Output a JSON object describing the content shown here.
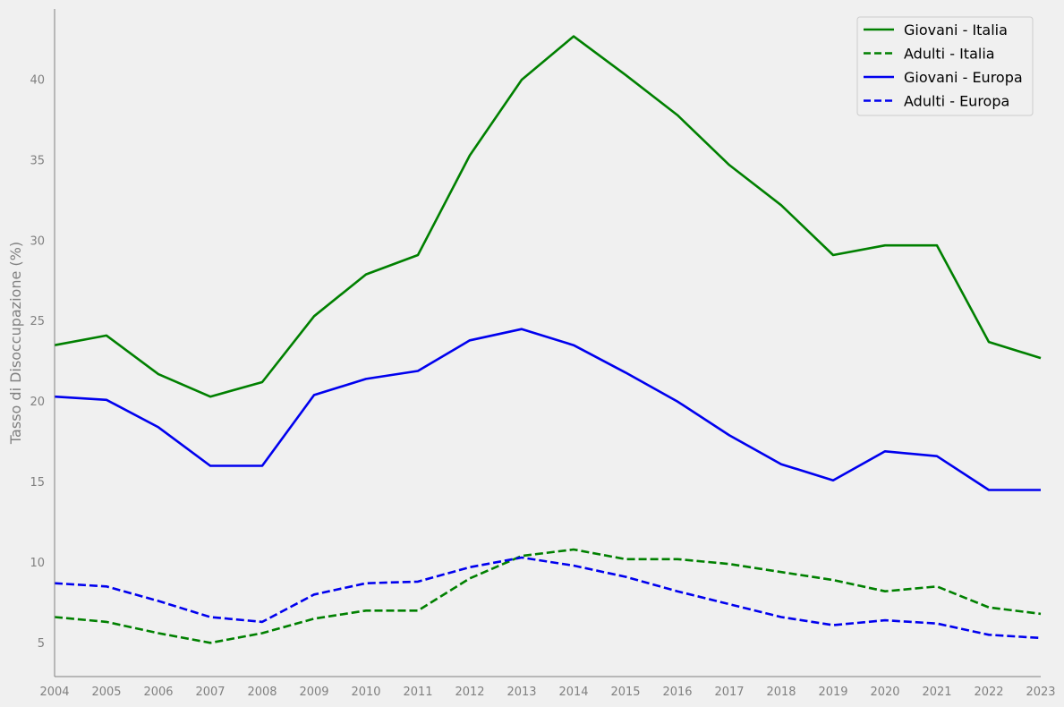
{
  "chart_data": {
    "type": "line",
    "title": "",
    "xlabel": "",
    "ylabel": "Tasso di Disoccupazione (%)",
    "x": [
      2004,
      2005,
      2006,
      2007,
      2008,
      2009,
      2010,
      2011,
      2012,
      2013,
      2014,
      2015,
      2016,
      2017,
      2018,
      2019,
      2020,
      2021,
      2022,
      2023
    ],
    "xlim": [
      2004,
      2023
    ],
    "ylim": [
      2.9,
      44.4
    ],
    "yticks": [
      5,
      10,
      15,
      20,
      25,
      30,
      35,
      40
    ],
    "grid": false,
    "legend_position": "top-right",
    "series": [
      {
        "name": "Giovani - Italia",
        "color": "#008000",
        "style": "solid",
        "values": [
          23.5,
          24.1,
          21.7,
          20.3,
          21.2,
          25.3,
          27.9,
          29.1,
          35.3,
          40.0,
          42.7,
          40.3,
          37.8,
          34.7,
          32.2,
          29.1,
          29.7,
          29.7,
          23.7,
          22.7
        ]
      },
      {
        "name": "Adulti - Italia",
        "color": "#008000",
        "style": "dashed",
        "values": [
          6.6,
          6.3,
          5.6,
          5.0,
          5.6,
          6.5,
          7.0,
          7.0,
          9.0,
          10.4,
          10.8,
          10.2,
          10.2,
          9.9,
          9.4,
          8.9,
          8.2,
          8.5,
          7.2,
          6.8
        ]
      },
      {
        "name": "Giovani - Europa",
        "color": "#0000ee",
        "style": "solid",
        "values": [
          20.3,
          20.1,
          18.4,
          16.0,
          16.0,
          20.4,
          21.4,
          21.9,
          23.8,
          24.5,
          23.5,
          21.8,
          20.0,
          17.9,
          16.1,
          15.1,
          16.9,
          16.6,
          14.5,
          14.5
        ]
      },
      {
        "name": "Adulti - Europa",
        "color": "#0000ee",
        "style": "dashed",
        "values": [
          8.7,
          8.5,
          7.6,
          6.6,
          6.3,
          8.0,
          8.7,
          8.8,
          9.7,
          10.3,
          9.8,
          9.1,
          8.2,
          7.4,
          6.6,
          6.1,
          6.4,
          6.2,
          5.5,
          5.3
        ]
      }
    ]
  }
}
